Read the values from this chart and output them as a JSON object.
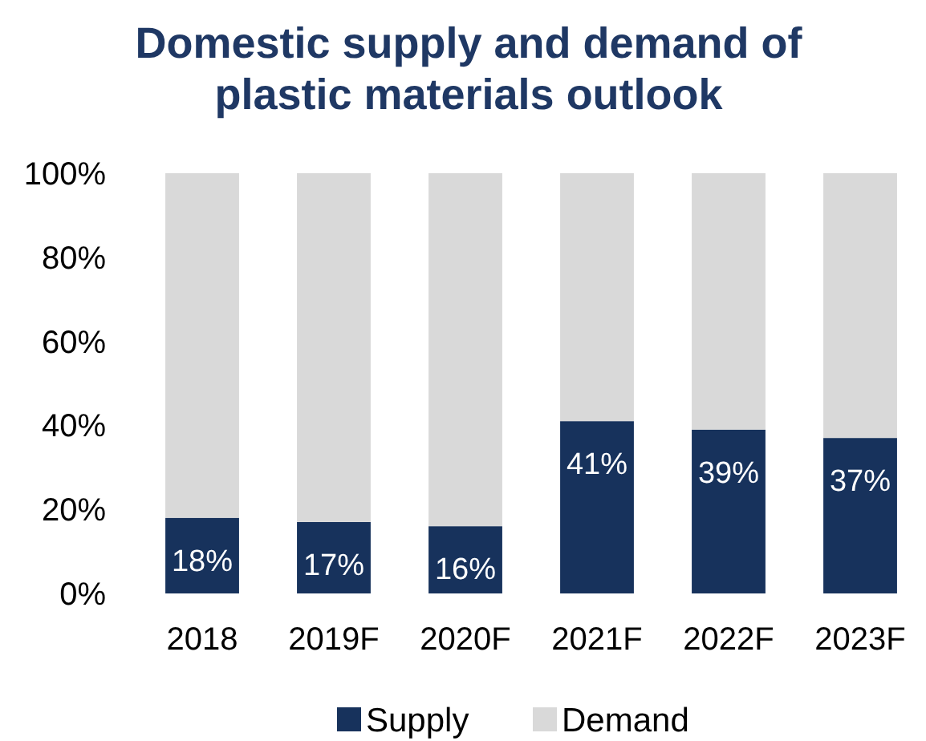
{
  "chart_data": {
    "type": "bar",
    "stacked": true,
    "title": "Domestic supply and demand of plastic materials outlook",
    "categories": [
      "2018",
      "2019F",
      "2020F",
      "2021F",
      "2022F",
      "2023F"
    ],
    "series": [
      {
        "name": "Supply",
        "color": "#17325c",
        "values": [
          18,
          17,
          16,
          41,
          39,
          37
        ],
        "value_labels": [
          "18%",
          "17%",
          "16%",
          "41%",
          "39%",
          "37%"
        ]
      },
      {
        "name": "Demand",
        "color": "#d9d9d9",
        "values": [
          82,
          83,
          84,
          59,
          61,
          63
        ]
      }
    ],
    "ylim": [
      0,
      100
    ],
    "yticks": [
      {
        "value": 0,
        "label": "0%"
      },
      {
        "value": 20,
        "label": "20%"
      },
      {
        "value": 40,
        "label": "40%"
      },
      {
        "value": 60,
        "label": "60%"
      },
      {
        "value": 80,
        "label": "80%"
      },
      {
        "value": 100,
        "label": "100%"
      }
    ],
    "legend": "bottom"
  }
}
